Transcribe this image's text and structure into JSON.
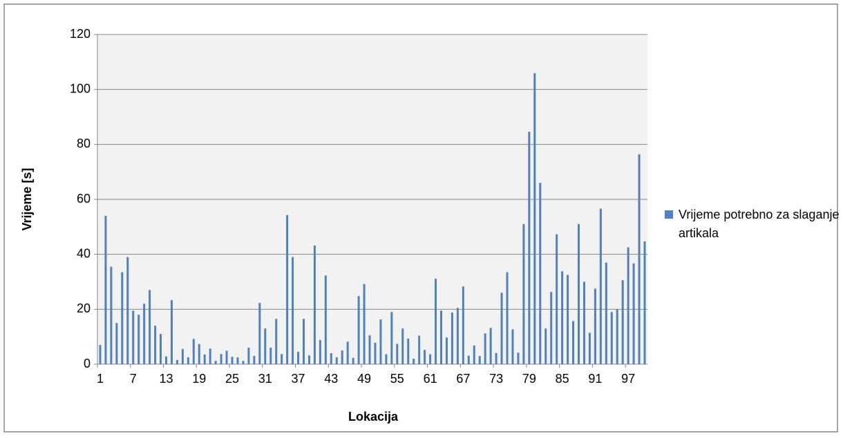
{
  "chart_data": {
    "type": "bar",
    "x_label": "Lokacija",
    "y_label": "Vrijeme [s]",
    "categories": [
      "1",
      null,
      null,
      null,
      null,
      null,
      "7",
      null,
      null,
      null,
      null,
      null,
      "13",
      null,
      null,
      null,
      null,
      null,
      "19",
      null,
      null,
      null,
      null,
      null,
      "25",
      null,
      null,
      null,
      null,
      null,
      "31",
      null,
      null,
      null,
      null,
      null,
      "37",
      null,
      null,
      null,
      null,
      null,
      "43",
      null,
      null,
      null,
      null,
      null,
      "49",
      null,
      null,
      null,
      null,
      null,
      "55",
      null,
      null,
      null,
      null,
      null,
      "61",
      null,
      null,
      null,
      null,
      null,
      "67",
      null,
      null,
      null,
      null,
      null,
      "73",
      null,
      null,
      null,
      null,
      null,
      "79",
      null,
      null,
      null,
      null,
      null,
      "85",
      null,
      null,
      null,
      null,
      null,
      "91",
      null,
      null,
      null,
      null,
      null,
      "97",
      null,
      null,
      null
    ],
    "series": [
      {
        "name": "Vrijeme potrebno za slaganje artikala",
        "color": "#4f81bd",
        "values": [
          7,
          54,
          35.5,
          15,
          33.5,
          39,
          19.5,
          18,
          22,
          27,
          14,
          11,
          2.8,
          23.3,
          1.5,
          5.5,
          2.5,
          9.2,
          7.3,
          3.5,
          5.7,
          1.2,
          3.7,
          4.9,
          2.7,
          2.5,
          1.2,
          6,
          3,
          22.3,
          13,
          6,
          16.5,
          3.7,
          54.3,
          39,
          4.5,
          16.5,
          3.2,
          43.2,
          8.8,
          32.3,
          4,
          2.5,
          5,
          8.2,
          2.3,
          24.8,
          29.2,
          10.5,
          7.8,
          16.3,
          3.6,
          19,
          7.4,
          13,
          9.3,
          2,
          10.4,
          5.2,
          3.6,
          31.1,
          19.5,
          9.7,
          18.8,
          20.5,
          28.3,
          3.1,
          6.8,
          3,
          11.2,
          13.2,
          4.1,
          26,
          33.5,
          12.7,
          4.2,
          51,
          84.6,
          105.9,
          66,
          13,
          26.3,
          47.3,
          33.8,
          32.5,
          15.7,
          51,
          30,
          11.4,
          27.5,
          56.6,
          37,
          19,
          20,
          30.6,
          42.5,
          36.7,
          76.4,
          44.7
        ]
      }
    ],
    "ylim": [
      0,
      120
    ],
    "yticks": [
      0,
      20,
      40,
      60,
      80,
      100,
      120
    ],
    "grid": true,
    "legend": "right"
  }
}
